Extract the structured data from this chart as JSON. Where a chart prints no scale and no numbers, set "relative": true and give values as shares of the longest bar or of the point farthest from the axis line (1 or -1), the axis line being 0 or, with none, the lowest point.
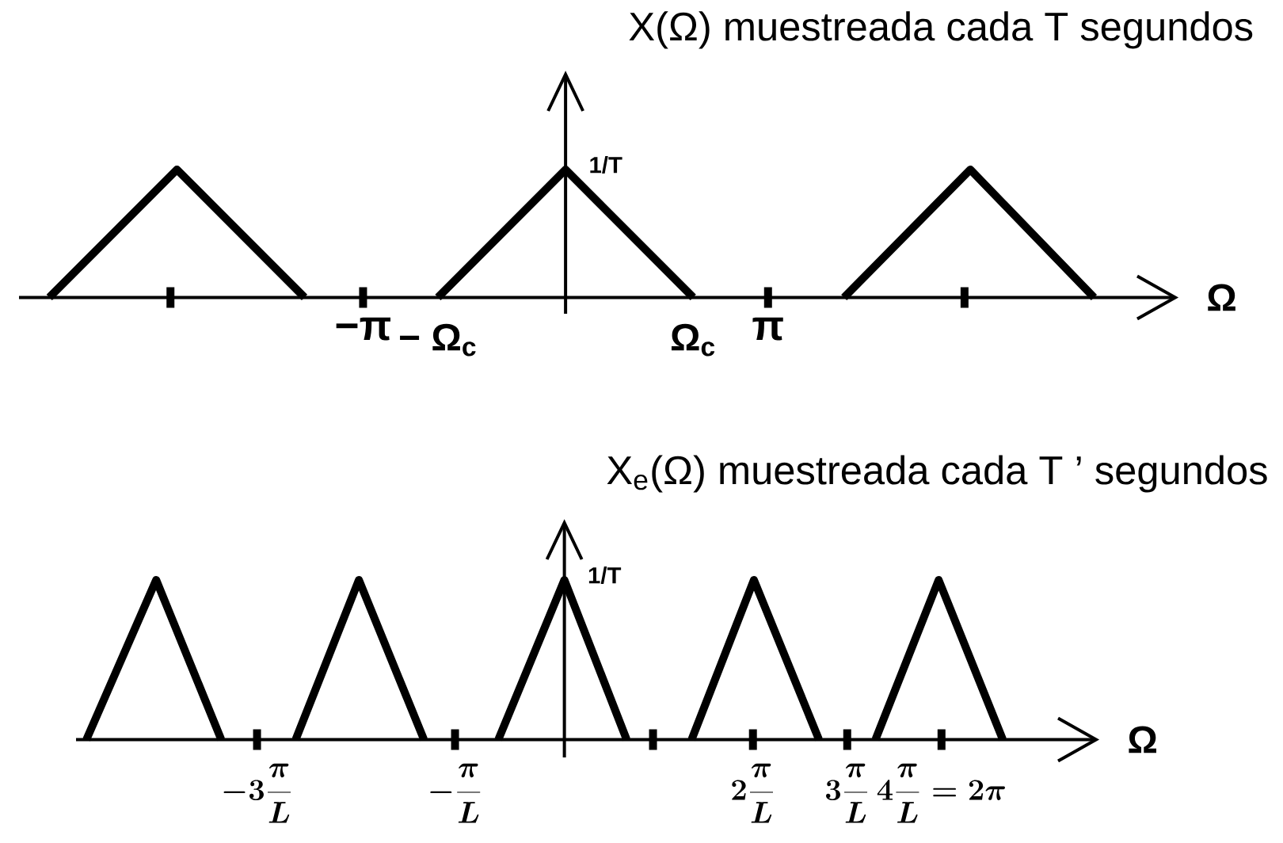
{
  "chart_data": [
    {
      "type": "line",
      "title": "X(Ω) muestreada cada T segundos",
      "xlabel": "Ω",
      "relative": true,
      "xlim": [
        -8.48,
        9.46
      ],
      "xticks": [
        {
          "value": -6.13,
          "label": null
        },
        {
          "value": -3.1416,
          "label": "−π"
        },
        {
          "value": 3.1416,
          "label": "π"
        },
        {
          "value": 6.19,
          "label": null
        }
      ],
      "tick_labels": "x",
      "line_style": "solid",
      "series": [
        {
          "color": "#000000",
          "x": [
            -8.01,
            -6.03,
            -4.05
          ],
          "values": [
            0,
            1,
            0
          ]
        },
        {
          "color": "#000000",
          "x": [
            -1.98,
            0,
            1.98
          ],
          "values": [
            0,
            1,
            0
          ]
        },
        {
          "color": "#000000",
          "x": [
            4.32,
            6.28,
            8.2
          ],
          "values": [
            0,
            1,
            0
          ]
        }
      ],
      "annotations": [
        {
          "text": "1/T",
          "x": 0,
          "y": 1
        },
        {
          "text": "− Ω$_{c}$",
          "x": -1.98,
          "y": 0
        },
        {
          "text": "Ω$_{c}$",
          "x": 1.98,
          "y": 0
        }
      ]
    },
    {
      "type": "line",
      "title": "X$_{e}$(Ω) muestreada cada T ’ segundos",
      "xlabel": "Ω",
      "relative": true,
      "xlim": [
        -5.18,
        5.64
      ],
      "xticks": [
        {
          "value": -3.26,
          "label": "-3\\frac{\\pi}{L}"
        },
        {
          "value": -1.16,
          "label": "-\\frac{\\pi}{L}"
        },
        {
          "value": 0.94,
          "label": null
        },
        {
          "value": 2,
          "label": "2\\frac{\\pi}{L}"
        },
        {
          "value": 3,
          "label": "3\\frac{\\pi}{L}"
        },
        {
          "value": 4,
          "label": "4\\frac{\\pi}{L}=2\\pi"
        }
      ],
      "tick_labels": "x",
      "line_style": "solid",
      "series": [
        {
          "color": "#000000",
          "x": [
            -5.07,
            -4.33,
            -3.64
          ],
          "values": [
            0,
            1,
            0
          ]
        },
        {
          "color": "#000000",
          "x": [
            -2.85,
            -2.18,
            -1.49
          ],
          "values": [
            0,
            1,
            0
          ]
        },
        {
          "color": "#000000",
          "x": [
            -0.7,
            0,
            0.66
          ],
          "values": [
            0,
            1,
            0
          ]
        },
        {
          "color": "#000000",
          "x": [
            1.35,
            2.01,
            2.7
          ],
          "values": [
            0,
            1,
            0
          ]
        },
        {
          "color": "#000000",
          "x": [
            3.3,
            3.97,
            4.65
          ],
          "values": [
            0,
            1,
            0
          ]
        }
      ],
      "annotations": [
        {
          "text": "1/T",
          "x": 0,
          "y": 1
        }
      ]
    }
  ]
}
